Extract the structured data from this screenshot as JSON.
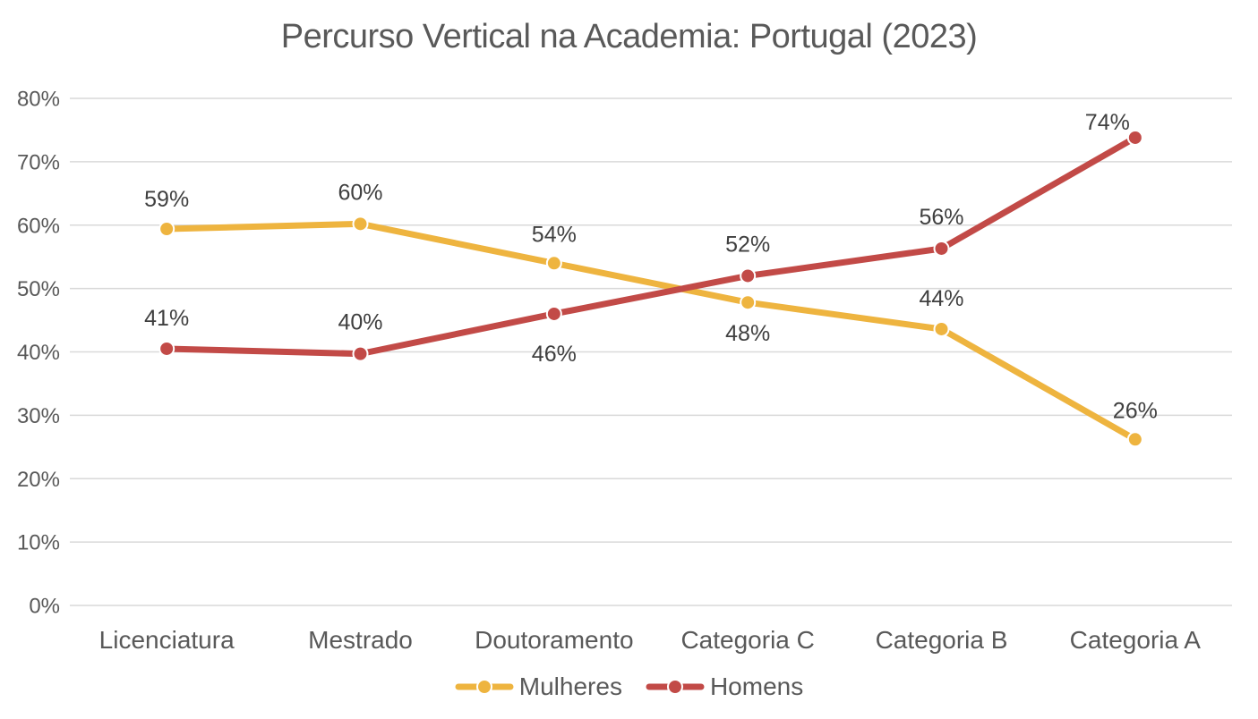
{
  "page": {
    "background": "#FFFFFF"
  },
  "chart_data": {
    "type": "line",
    "title": "Percurso Vertical na Academia: Portugal (2023)",
    "categories": [
      "Licenciatura",
      "Mestrado",
      "Doutoramento",
      "Categoria C",
      "Categoria B",
      "Categoria A"
    ],
    "series": [
      {
        "name": "Mulheres",
        "color": "#EEB43F",
        "values": [
          59.4,
          60.2,
          54.0,
          47.8,
          43.6,
          26.2
        ],
        "data_labels": [
          "59%",
          "60%",
          "54%",
          "48%",
          "44%",
          "26%"
        ],
        "label_offsets": [
          [
            0,
            -33
          ],
          [
            0,
            -35
          ],
          [
            0,
            -32
          ],
          [
            0,
            35
          ],
          [
            0,
            -34
          ],
          [
            0,
            -32
          ]
        ]
      },
      {
        "name": "Homens",
        "color": "#C24A47",
        "values": [
          40.5,
          39.7,
          46.0,
          52.0,
          56.3,
          73.8
        ],
        "data_labels": [
          "41%",
          "40%",
          "46%",
          "52%",
          "56%",
          "74%"
        ],
        "label_offsets": [
          [
            0,
            -34
          ],
          [
            0,
            -35
          ],
          [
            0,
            45
          ],
          [
            0,
            -35
          ],
          [
            0,
            -35
          ],
          [
            -31,
            -17
          ]
        ]
      }
    ],
    "y_ticks": [
      "0%",
      "10%",
      "20%",
      "30%",
      "40%",
      "50%",
      "60%",
      "70%",
      "80%"
    ],
    "ylim": [
      0,
      80
    ],
    "grid": true,
    "legend_position": "bottom",
    "colors": {
      "gridline": "#D9D9D9",
      "axis_text": "#595959",
      "data_label_text": "#3F3F3F",
      "title_text": "#595959",
      "marker_ring": "#FFFFFF"
    }
  }
}
